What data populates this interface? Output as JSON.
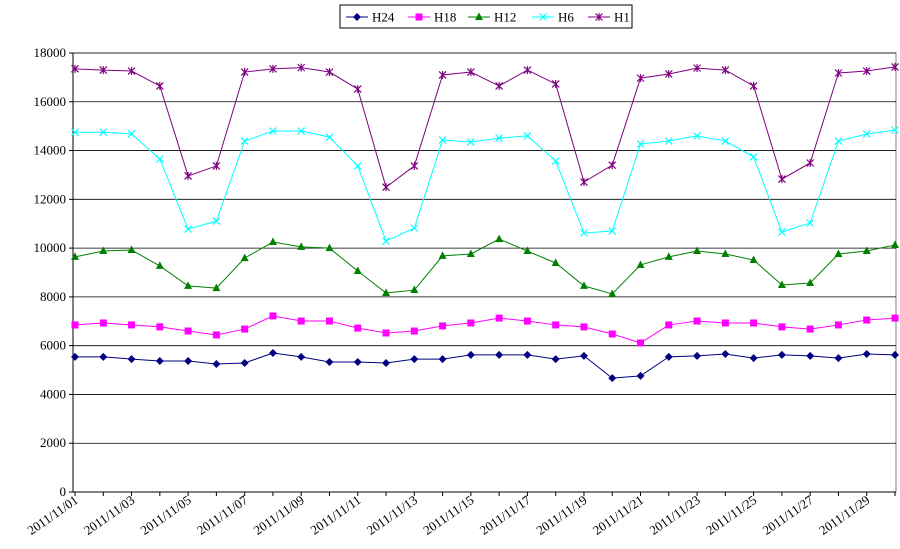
{
  "chart_data": {
    "type": "line",
    "categories": [
      "2011/11/01",
      null,
      "2011/11/03",
      null,
      "2011/11/05",
      null,
      "2011/11/07",
      null,
      "2011/11/09",
      null,
      "2011/11/11",
      null,
      "2011/11/13",
      null,
      "2011/11/15",
      null,
      "2011/11/17",
      null,
      "2011/11/19",
      null,
      "2011/11/21",
      null,
      "2011/11/23",
      null,
      "2011/11/25",
      null,
      "2011/11/27",
      null,
      "2011/11/29",
      null
    ],
    "ylim": [
      0,
      18000
    ],
    "yticks": [
      0,
      2000,
      4000,
      6000,
      8000,
      10000,
      12000,
      14000,
      16000,
      18000
    ],
    "grid": true,
    "legend": "top",
    "series": [
      {
        "name": "H24",
        "color": "#000080",
        "marker": "diamond",
        "values": [
          5540,
          5540,
          5450,
          5370,
          5370,
          5250,
          5290,
          5700,
          5540,
          5330,
          5330,
          5290,
          5450,
          5450,
          5620,
          5620,
          5620,
          5450,
          5580,
          4670,
          4760,
          5540,
          5580,
          5660,
          5490,
          5620,
          5580,
          5490,
          5660,
          5620
        ]
      },
      {
        "name": "H18",
        "color": "#ff00ff",
        "marker": "square",
        "values": [
          6850,
          6930,
          6850,
          6770,
          6600,
          6440,
          6680,
          7220,
          7010,
          7010,
          6720,
          6520,
          6600,
          6810,
          6930,
          7130,
          7010,
          6850,
          6770,
          6480,
          6110,
          6850,
          7010,
          6930,
          6930,
          6770,
          6680,
          6850,
          7050,
          7130
        ]
      },
      {
        "name": "H12",
        "color": "#008000",
        "marker": "triangle",
        "values": [
          9640,
          9880,
          9920,
          9270,
          8450,
          8360,
          9590,
          10250,
          10050,
          10000,
          9060,
          8160,
          8280,
          9680,
          9760,
          10370,
          9880,
          9390,
          8450,
          8120,
          9310,
          9640,
          9880,
          9760,
          9510,
          8490,
          8570,
          9760,
          9880,
          10130
        ]
      },
      {
        "name": "H6",
        "color": "#00ffff",
        "marker": "x",
        "values": [
          14750,
          14750,
          14680,
          13650,
          10780,
          11110,
          14390,
          14800,
          14800,
          14550,
          13370,
          10290,
          10820,
          14430,
          14350,
          14510,
          14600,
          13570,
          10620,
          10700,
          14270,
          14390,
          14600,
          14390,
          13740,
          10660,
          11030,
          14390,
          14680,
          14840
        ]
      },
      {
        "name": "H1",
        "color": "#800080",
        "marker": "star",
        "values": [
          17350,
          17300,
          17260,
          16650,
          12960,
          13370,
          17220,
          17350,
          17400,
          17220,
          16520,
          12500,
          13370,
          17100,
          17220,
          16650,
          17300,
          16730,
          12710,
          13400,
          16970,
          17140,
          17380,
          17300,
          16650,
          12830,
          13490,
          17180,
          17260,
          17430
        ]
      }
    ]
  }
}
